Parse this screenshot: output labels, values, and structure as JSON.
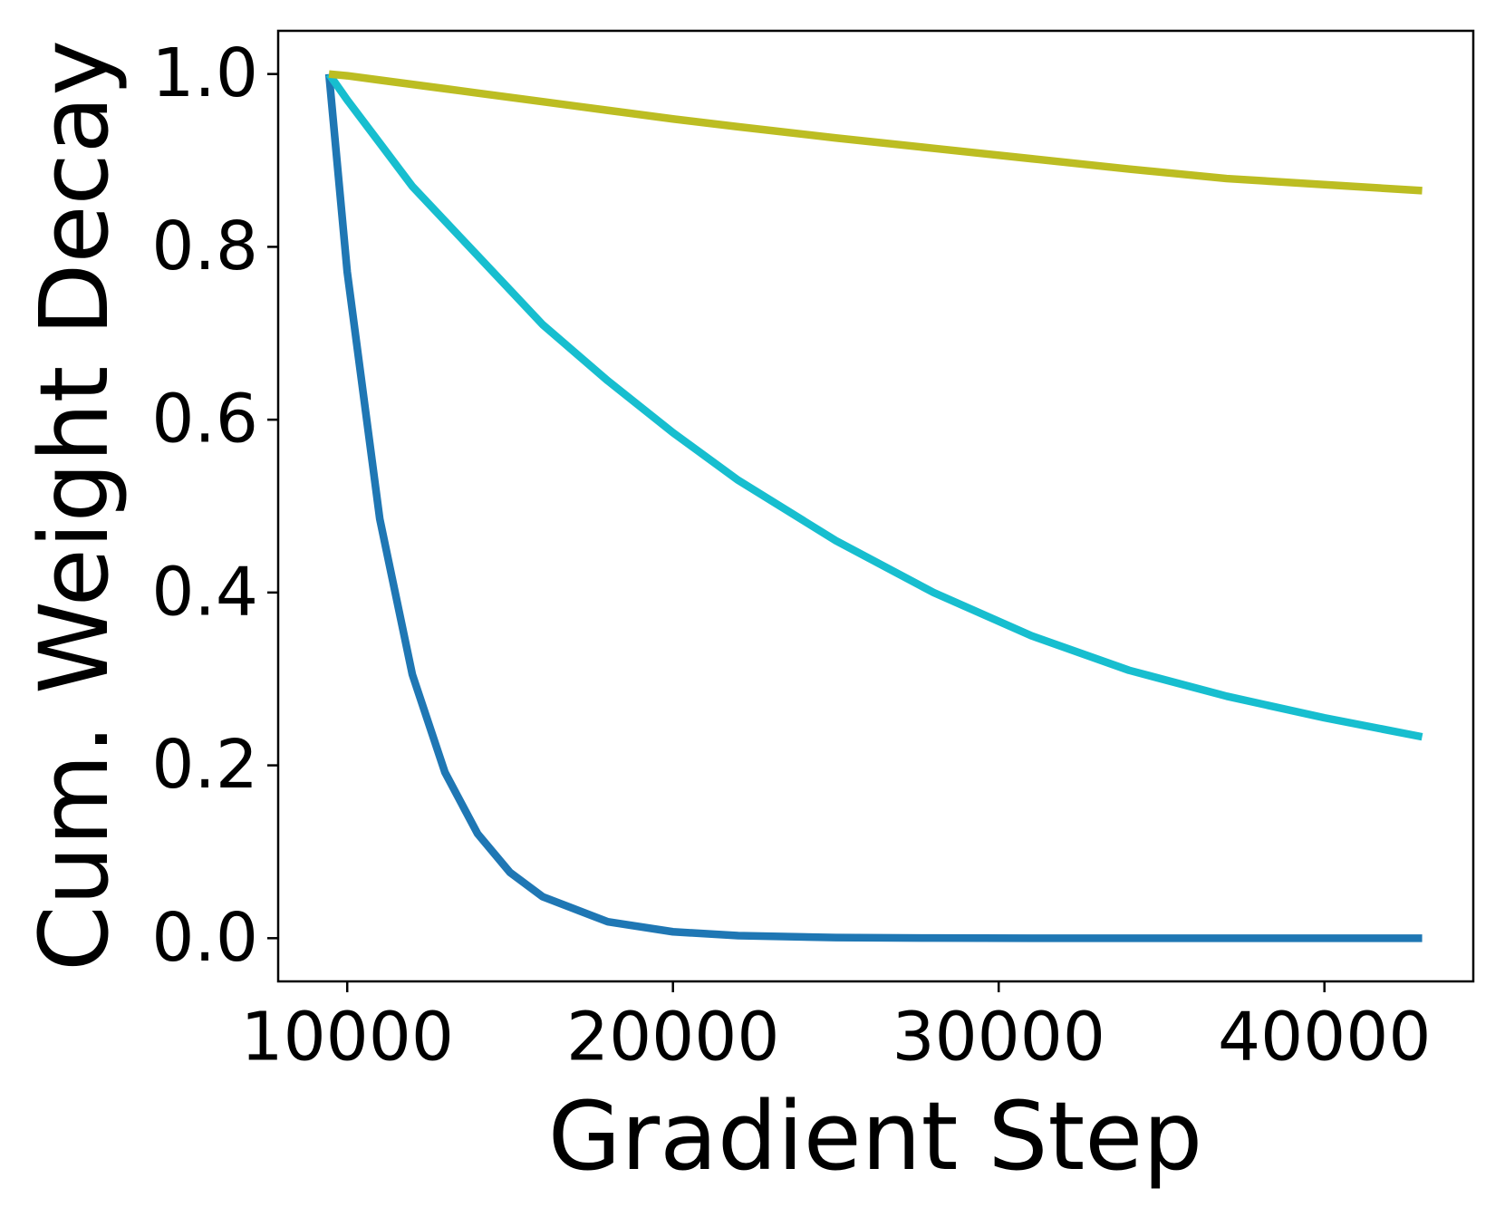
{
  "chart_data": {
    "type": "line",
    "x_label": "Gradient Step",
    "y_label": "Cum. Weight Decay",
    "x": [
      9440,
      10000,
      11000,
      12000,
      13000,
      14000,
      15000,
      16000,
      18000,
      20000,
      22000,
      25000,
      28000,
      31000,
      34000,
      37000,
      40000,
      43000
    ],
    "series": [
      {
        "color": "#1f77b4",
        "values": [
          1,
          0.771,
          0.485,
          0.305,
          0.192,
          0.121,
          0.076,
          0.048,
          0.019,
          0.0074,
          0.0029,
          0.0007,
          0.0002,
          0,
          0,
          0,
          0,
          0
        ]
      },
      {
        "color": "#17becf",
        "values": [
          1,
          0.97,
          0.92,
          0.87,
          0.83,
          0.79,
          0.75,
          0.71,
          0.645,
          0.585,
          0.53,
          0.46,
          0.4,
          0.35,
          0.31,
          0.28,
          0.255,
          0.233
        ]
      },
      {
        "color": "#bcbd22",
        "values": [
          1,
          0.998,
          0.993,
          0.988,
          0.983,
          0.978,
          0.973,
          0.968,
          0.958,
          0.948,
          0.939,
          0.926,
          0.914,
          0.902,
          0.89,
          0.879,
          0.872,
          0.865
        ]
      }
    ],
    "xlim": [
      7880,
      44570
    ],
    "ylim": [
      -0.05,
      1.05
    ],
    "xticks": [
      10000,
      20000,
      30000,
      40000
    ],
    "yticks": [
      {
        "value": 0,
        "label": "0.0"
      },
      {
        "value": 0.2,
        "label": "0.2"
      },
      {
        "value": 0.4,
        "label": "0.4"
      },
      {
        "value": 0.6,
        "label": "0.6"
      },
      {
        "value": 0.8,
        "label": "0.8"
      },
      {
        "value": 1,
        "label": "1.0"
      }
    ]
  }
}
